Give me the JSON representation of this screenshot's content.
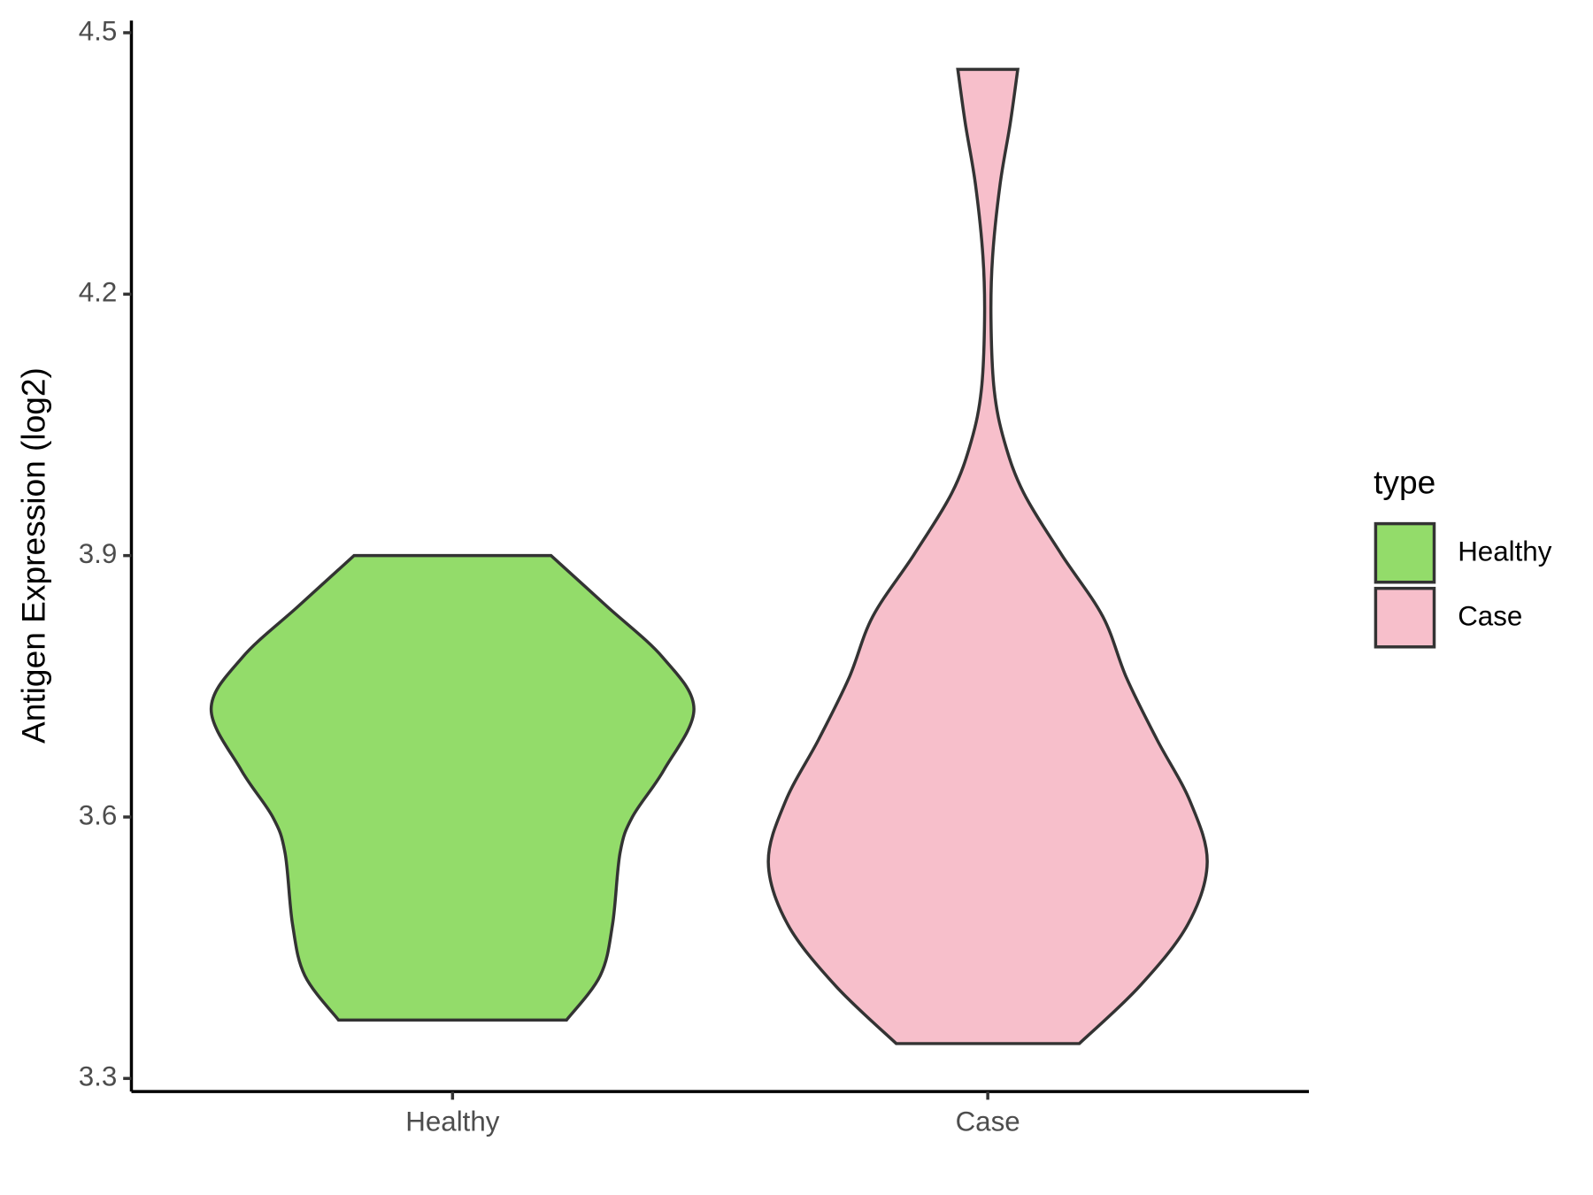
{
  "chart_data": {
    "type": "violin",
    "ylabel": "Antigen Expression (log2)",
    "categories": [
      "Healthy",
      "Case"
    ],
    "legend_title": "type",
    "ylim": [
      3.285,
      4.514
    ],
    "yticks": [
      3.3,
      3.6,
      3.9,
      4.2,
      4.5
    ],
    "series": [
      {
        "name": "Healthy",
        "color": "#93dc6a",
        "y": [
          3.367,
          3.418,
          3.477,
          3.559,
          3.6,
          3.654,
          3.724,
          3.783,
          3.842,
          3.9
        ],
        "width": [
          0.213,
          0.276,
          0.299,
          0.313,
          0.336,
          0.395,
          0.451,
          0.393,
          0.288,
          0.184
        ]
      },
      {
        "name": "Case",
        "color": "#f7bfcb",
        "y": [
          3.34,
          3.406,
          3.477,
          3.548,
          3.618,
          3.689,
          3.76,
          3.83,
          3.901,
          3.972,
          4.031,
          4.09,
          4.172,
          4.243,
          4.326,
          4.396,
          4.458
        ],
        "width": [
          0.171,
          0.284,
          0.374,
          0.41,
          0.378,
          0.316,
          0.259,
          0.215,
          0.138,
          0.067,
          0.031,
          0.012,
          0.006,
          0.009,
          0.023,
          0.042,
          0.056
        ]
      }
    ]
  }
}
